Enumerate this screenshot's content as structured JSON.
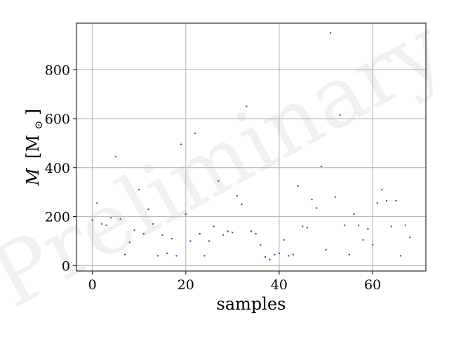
{
  "chart_data": {
    "type": "scatter",
    "xlabel": "samples",
    "ylabel": "M [M_⊙]",
    "ylabel_main": "M",
    "ylabel_unit": "[M",
    "ylabel_sub": "⊙",
    "ylabel_close": "]",
    "watermark": "Preliminary",
    "xlim": [
      -3.4,
      71.4
    ],
    "ylim": [
      -22,
      990
    ],
    "grid": true,
    "xticks": [
      0,
      20,
      40,
      60
    ],
    "yticks": [
      0,
      200,
      400,
      600,
      800
    ],
    "marker_color": "#3b4fc4",
    "x": [
      0,
      1,
      2,
      3,
      4,
      5,
      6,
      7,
      8,
      9,
      10,
      11,
      12,
      13,
      14,
      15,
      16,
      17,
      18,
      19,
      20,
      21,
      22,
      23,
      24,
      25,
      26,
      27,
      28,
      29,
      30,
      31,
      32,
      33,
      34,
      35,
      36,
      37,
      38,
      39,
      40,
      41,
      42,
      43,
      44,
      45,
      46,
      47,
      48,
      49,
      50,
      51,
      52,
      53,
      54,
      55,
      56,
      57,
      58,
      59,
      60,
      61,
      62,
      63,
      64,
      65,
      66,
      67,
      68
    ],
    "y": [
      185,
      255,
      170,
      165,
      195,
      445,
      190,
      45,
      95,
      145,
      310,
      130,
      230,
      170,
      40,
      125,
      50,
      110,
      40,
      495,
      210,
      100,
      540,
      130,
      40,
      100,
      160,
      345,
      125,
      140,
      135,
      285,
      250,
      650,
      140,
      130,
      85,
      35,
      25,
      45,
      50,
      105,
      40,
      45,
      325,
      160,
      155,
      270,
      235,
      405,
      65,
      950,
      280,
      615,
      165,
      45,
      210,
      165,
      105,
      150,
      85,
      255,
      310,
      265,
      160,
      265,
      40,
      165,
      115
    ]
  }
}
